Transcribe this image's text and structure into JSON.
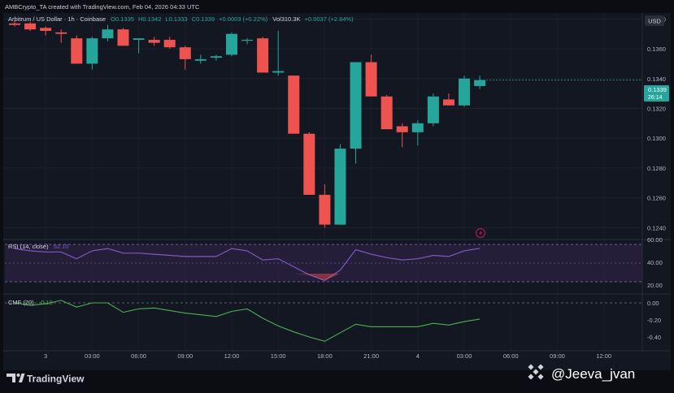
{
  "header": {
    "created_by": "AMBCrypto_TA created with TradingView.com, Feb 04, 2026 04:33 UTC",
    "symbol": "Arbitrum / US Dollar · 1h · Coinbase",
    "ohlc_o": "O0.1335",
    "ohlc_h": "H0.1342",
    "ohlc_l": "L0.1333",
    "ohlc_c": "C0.1339",
    "change": "+0.0003 (+0.22%)",
    "vol": "Vol310.3K",
    "vol_change": "+0.0037 (+2.84%)",
    "currency": "USD"
  },
  "price_label": {
    "price": "0.1339",
    "countdown": "26:14"
  },
  "rsi": {
    "label": "RSI (14, close)",
    "value": "52.10",
    "ticks": [
      "60.00",
      "40.00",
      "20.00"
    ]
  },
  "cmf": {
    "label": "CMF (20)",
    "value": "-0.19",
    "ticks": [
      "0.00",
      "-0.20",
      "-0.40"
    ]
  },
  "footer": {
    "brand": "TradingView",
    "watermark": "@Jeeva_jvan"
  },
  "colors": {
    "up": "#26a69a",
    "down": "#ef5350",
    "rsi": "#7e57c2",
    "cmf": "#4caf50",
    "bg": "#131722"
  },
  "chart_data": {
    "type": "candlestick",
    "interval": "1h",
    "y_ticks": [
      "0.1380",
      "0.1360",
      "0.1340",
      "0.1320",
      "0.1300",
      "0.1280",
      "0.1260",
      "0.1240"
    ],
    "ylim": [
      0.1232,
      0.1384
    ],
    "x_ticks": [
      "3",
      "03:00",
      "06:00",
      "09:00",
      "12:00",
      "15:00",
      "18:00",
      "21:00",
      "4",
      "03:00",
      "06:00",
      "09:00",
      "12:00"
    ],
    "candles": [
      {
        "o": 0.1377,
        "h": 0.1379,
        "l": 0.1375,
        "c": 0.1376
      },
      {
        "o": 0.1377,
        "h": 0.1378,
        "l": 0.1372,
        "c": 0.1373
      },
      {
        "o": 0.1374,
        "h": 0.1375,
        "l": 0.1369,
        "c": 0.1372
      },
      {
        "o": 0.1371,
        "h": 0.1373,
        "l": 0.1364,
        "c": 0.137
      },
      {
        "o": 0.1367,
        "h": 0.1369,
        "l": 0.135,
        "c": 0.135
      },
      {
        "o": 0.135,
        "h": 0.1368,
        "l": 0.1346,
        "c": 0.1367
      },
      {
        "o": 0.1367,
        "h": 0.1376,
        "l": 0.1365,
        "c": 0.1373
      },
      {
        "o": 0.1373,
        "h": 0.1374,
        "l": 0.1362,
        "c": 0.1362
      },
      {
        "o": 0.1366,
        "h": 0.1367,
        "l": 0.1357,
        "c": 0.1367
      },
      {
        "o": 0.1366,
        "h": 0.1368,
        "l": 0.1362,
        "c": 0.1364
      },
      {
        "o": 0.1366,
        "h": 0.1368,
        "l": 0.136,
        "c": 0.1361
      },
      {
        "o": 0.1361,
        "h": 0.1362,
        "l": 0.1346,
        "c": 0.1353
      },
      {
        "o": 0.1352,
        "h": 0.1356,
        "l": 0.135,
        "c": 0.1353
      },
      {
        "o": 0.1354,
        "h": 0.1356,
        "l": 0.1352,
        "c": 0.1355
      },
      {
        "o": 0.1356,
        "h": 0.1371,
        "l": 0.1355,
        "c": 0.137
      },
      {
        "o": 0.1366,
        "h": 0.1367,
        "l": 0.1363,
        "c": 0.1366
      },
      {
        "o": 0.1367,
        "h": 0.1368,
        "l": 0.1344,
        "c": 0.1344
      },
      {
        "o": 0.1344,
        "h": 0.1372,
        "l": 0.1342,
        "c": 0.1345
      },
      {
        "o": 0.1342,
        "h": 0.1342,
        "l": 0.1303,
        "c": 0.1303
      },
      {
        "o": 0.1303,
        "h": 0.1304,
        "l": 0.1262,
        "c": 0.1262
      },
      {
        "o": 0.1262,
        "h": 0.1269,
        "l": 0.124,
        "c": 0.1242
      },
      {
        "o": 0.1242,
        "h": 0.1296,
        "l": 0.1242,
        "c": 0.1293
      },
      {
        "o": 0.1293,
        "h": 0.1351,
        "l": 0.1283,
        "c": 0.1351
      },
      {
        "o": 0.1351,
        "h": 0.1356,
        "l": 0.1328,
        "c": 0.1328
      },
      {
        "o": 0.1328,
        "h": 0.1329,
        "l": 0.1306,
        "c": 0.1306
      },
      {
        "o": 0.1308,
        "h": 0.131,
        "l": 0.1294,
        "c": 0.1304
      },
      {
        "o": 0.1304,
        "h": 0.1312,
        "l": 0.1295,
        "c": 0.131
      },
      {
        "o": 0.131,
        "h": 0.133,
        "l": 0.1308,
        "c": 0.1328
      },
      {
        "o": 0.1326,
        "h": 0.133,
        "l": 0.1322,
        "c": 0.1322
      },
      {
        "o": 0.1322,
        "h": 0.1342,
        "l": 0.1321,
        "c": 0.134
      },
      {
        "o": 0.1335,
        "h": 0.1342,
        "l": 0.1333,
        "c": 0.1339
      }
    ],
    "rsi_range": [
      15,
      72
    ],
    "rsi_values": [
      52,
      50,
      49,
      49,
      43,
      50,
      52,
      48,
      48,
      47,
      46,
      45,
      45,
      45,
      52,
      50,
      42,
      43,
      36,
      29,
      24,
      33,
      51,
      47,
      44,
      42,
      43,
      46,
      45,
      50,
      52.1
    ],
    "cmf_range": [
      -0.52,
      0.06
    ],
    "cmf_values": [
      0.0,
      -0.03,
      -0.01,
      0.03,
      -0.05,
      0.0,
      0.0,
      -0.11,
      -0.07,
      -0.06,
      -0.09,
      -0.12,
      -0.14,
      -0.16,
      -0.1,
      -0.07,
      -0.18,
      -0.27,
      -0.34,
      -0.4,
      -0.45,
      -0.35,
      -0.25,
      -0.28,
      -0.28,
      -0.28,
      -0.28,
      -0.24,
      -0.26,
      -0.22,
      -0.19
    ]
  }
}
